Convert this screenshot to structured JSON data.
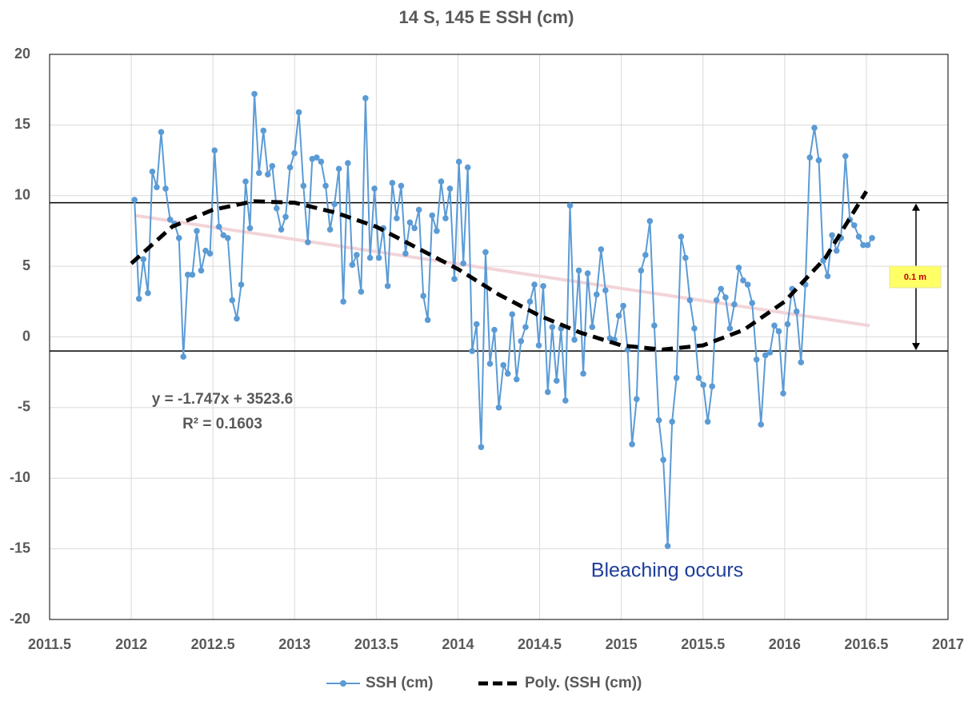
{
  "chart_data": {
    "type": "line",
    "title": "14 S, 145 E SSH (cm)",
    "xlim": [
      2011.5,
      2017
    ],
    "xticks": [
      2011.5,
      2012,
      2012.5,
      2013,
      2013.5,
      2014,
      2014.5,
      2015,
      2015.5,
      2016,
      2016.5,
      2017
    ],
    "ylim": [
      -20,
      20
    ],
    "yticks": [
      -20,
      -15,
      -10,
      -5,
      0,
      5,
      10,
      15,
      20
    ],
    "grid": true,
    "legend": "bottom",
    "series": [
      {
        "name": "SSH (cm)",
        "color": "#5b9bd5",
        "style": "line-marker",
        "x": [
          2012.02,
          2012.047,
          2012.074,
          2012.102,
          2012.129,
          2012.156,
          2012.183,
          2012.21,
          2012.238,
          2012.265,
          2012.292,
          2012.319,
          2012.346,
          2012.374,
          2012.401,
          2012.428,
          2012.455,
          2012.482,
          2012.51,
          2012.537,
          2012.564,
          2012.591,
          2012.618,
          2012.646,
          2012.673,
          2012.7,
          2012.727,
          2012.754,
          2012.782,
          2012.809,
          2012.836,
          2012.863,
          2012.89,
          2012.918,
          2012.945,
          2012.972,
          2012.999,
          2013.026,
          2013.054,
          2013.081,
          2013.108,
          2013.135,
          2013.162,
          2013.19,
          2013.217,
          2013.244,
          2013.271,
          2013.298,
          2013.326,
          2013.353,
          2013.38,
          2013.407,
          2013.434,
          2013.462,
          2013.489,
          2013.516,
          2013.543,
          2013.57,
          2013.598,
          2013.625,
          2013.652,
          2013.679,
          2013.706,
          2013.734,
          2013.761,
          2013.788,
          2013.815,
          2013.842,
          2013.87,
          2013.897,
          2013.924,
          2013.951,
          2013.978,
          2014.006,
          2014.033,
          2014.06,
          2014.087,
          2014.114,
          2014.142,
          2014.169,
          2014.196,
          2014.223,
          2014.25,
          2014.278,
          2014.305,
          2014.332,
          2014.359,
          2014.386,
          2014.414,
          2014.441,
          2014.468,
          2014.495,
          2014.522,
          2014.55,
          2014.577,
          2014.604,
          2014.631,
          2014.658,
          2014.686,
          2014.713,
          2014.74,
          2014.767,
          2014.794,
          2014.822,
          2014.849,
          2014.876,
          2014.903,
          2014.93,
          2014.958,
          2014.985,
          2015.012,
          2015.039,
          2015.066,
          2015.094,
          2015.121,
          2015.148,
          2015.175,
          2015.202,
          2015.23,
          2015.257,
          2015.284,
          2015.311,
          2015.338,
          2015.366,
          2015.393,
          2015.42,
          2015.447,
          2015.474,
          2015.502,
          2015.529,
          2015.556,
          2015.583,
          2015.61,
          2015.638,
          2015.665,
          2015.692,
          2015.719,
          2015.746,
          2015.774,
          2015.801,
          2015.828,
          2015.855,
          2015.882,
          2015.91,
          2015.937,
          2015.964,
          2015.991,
          2016.018,
          2016.046,
          2016.073,
          2016.1,
          2016.127,
          2016.154,
          2016.182,
          2016.209,
          2016.236,
          2016.263,
          2016.29,
          2016.318,
          2016.345,
          2016.372,
          2016.399,
          2016.426,
          2016.454,
          2016.481,
          2016.508,
          2016.535
        ],
        "values": [
          9.7,
          2.7,
          5.5,
          3.1,
          11.7,
          10.6,
          14.5,
          10.5,
          8.3,
          8.0,
          7.0,
          -1.4,
          4.4,
          4.4,
          7.5,
          4.7,
          6.1,
          5.9,
          13.2,
          7.8,
          7.2,
          7.0,
          2.6,
          1.3,
          3.7,
          11.0,
          7.7,
          17.2,
          11.6,
          14.6,
          11.5,
          12.1,
          9.1,
          7.6,
          8.5,
          12.0,
          13.0,
          15.9,
          10.7,
          6.7,
          12.6,
          12.7,
          12.4,
          10.7,
          7.6,
          9.4,
          11.9,
          2.5,
          12.3,
          5.1,
          5.8,
          3.2,
          16.9,
          5.6,
          10.5,
          5.6,
          7.7,
          3.6,
          10.9,
          8.4,
          10.7,
          5.9,
          8.1,
          7.7,
          9.0,
          2.9,
          1.2,
          8.6,
          7.5,
          11.0,
          8.4,
          10.5,
          4.1,
          12.4,
          5.2,
          12.0,
          -1.0,
          0.9,
          -7.8,
          6.0,
          -1.9,
          0.5,
          -5.0,
          -2.0,
          -2.6,
          1.6,
          -3.0,
          -0.3,
          0.7,
          2.5,
          3.7,
          -0.6,
          3.6,
          -3.9,
          0.7,
          -3.1,
          0.6,
          -4.5,
          9.3,
          -0.2,
          4.7,
          -2.6,
          4.5,
          0.7,
          3.0,
          6.2,
          3.3,
          -0.1,
          -0.2,
          1.5,
          2.2,
          -0.9,
          -7.6,
          -4.4,
          4.7,
          5.8,
          8.2,
          0.8,
          -5.9,
          -8.7,
          -14.8,
          -6.0,
          -2.9,
          7.1,
          5.6,
          2.6,
          0.6,
          -2.9,
          -3.4,
          -6.0,
          -3.5,
          2.6,
          3.4,
          2.8,
          0.6,
          2.3,
          4.9,
          4.0,
          3.7,
          2.4,
          -1.6,
          -6.2,
          -1.3,
          -1.1,
          0.8,
          0.4,
          -4.0,
          0.9,
          3.4,
          1.8,
          -1.8,
          3.7,
          12.7,
          14.8,
          12.5,
          5.4,
          4.3,
          7.2,
          6.1,
          7.0,
          12.8,
          8.3,
          7.9,
          7.1,
          6.5,
          6.5,
          7.0
        ]
      },
      {
        "name": "Poly. (SSH (cm))",
        "color": "#000000",
        "style": "dashed",
        "x": [
          2012,
          2012.25,
          2012.5,
          2012.75,
          2013,
          2013.25,
          2013.5,
          2013.75,
          2014,
          2014.25,
          2014.5,
          2014.75,
          2015,
          2015.25,
          2015.5,
          2015.75,
          2016,
          2016.25,
          2016.5
        ],
        "values": [
          5.2,
          7.8,
          9.0,
          9.6,
          9.5,
          8.8,
          7.8,
          6.3,
          4.8,
          3.0,
          1.5,
          0.3,
          -0.6,
          -0.9,
          -0.6,
          0.5,
          2.5,
          5.6,
          10.3
        ]
      }
    ],
    "trendline": {
      "x": [
        2012.02,
        2016.52
      ],
      "values": [
        8.6,
        0.8
      ],
      "color": "#f2d4d8"
    },
    "hlines": [
      9.5,
      -1
    ],
    "annotations": [
      "y = -1.747x + 3523.6",
      "R² = 0.1603",
      "Bleaching occurs",
      "0.1 m"
    ]
  }
}
